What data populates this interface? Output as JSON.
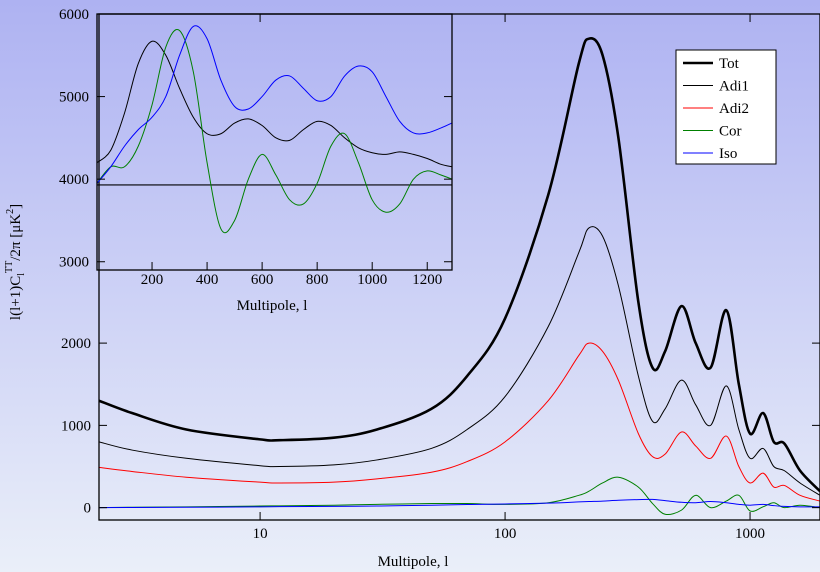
{
  "chart_data": [
    {
      "type": "line",
      "xscale": "log",
      "x_label": "Multipole, l",
      "ylabel_parts": [
        "l(l+1)C",
        "l",
        "TT",
        "/2π [μK",
        "2",
        "]"
      ],
      "xlim": [
        2.2,
        1930
      ],
      "ylim": [
        -150,
        6000
      ],
      "xticks": [
        10,
        100,
        1000
      ],
      "yticks": [
        0,
        1000,
        2000
      ],
      "legend": "upper right",
      "x": [
        2.2,
        3,
        5,
        10,
        12,
        20,
        30,
        50,
        70,
        100,
        150,
        200,
        220,
        250,
        290,
        350,
        400,
        450,
        525,
        600,
        690,
        800,
        900,
        1000,
        1130,
        1250,
        1380,
        1600,
        1930
      ],
      "series": [
        {
          "name": "Tot",
          "color": "#000000",
          "linewidth": 2.6,
          "values": [
            1300,
            1150,
            950,
            830,
            820,
            850,
            950,
            1200,
            1600,
            2300,
            3800,
            5400,
            5700,
            5500,
            4500,
            2500,
            1700,
            1900,
            2450,
            2000,
            1700,
            2400,
            1500,
            900,
            1150,
            800,
            780,
            450,
            200
          ]
        },
        {
          "name": "Adi1",
          "color": "#000000",
          "linewidth": 1,
          "values": [
            800,
            700,
            600,
            510,
            500,
            520,
            580,
            720,
            950,
            1350,
            2200,
            3100,
            3400,
            3300,
            2700,
            1600,
            1050,
            1200,
            1550,
            1250,
            1000,
            1480,
            950,
            600,
            720,
            500,
            450,
            300,
            150
          ]
        },
        {
          "name": "Adi2",
          "color": "#ff0000",
          "linewidth": 1,
          "values": [
            490,
            440,
            370,
            310,
            300,
            310,
            350,
            430,
            560,
            800,
            1300,
            1850,
            2000,
            1900,
            1550,
            900,
            620,
            650,
            920,
            750,
            600,
            870,
            500,
            300,
            420,
            250,
            270,
            150,
            80
          ]
        },
        {
          "name": "Cor",
          "color": "#008000",
          "linewidth": 1,
          "values": [
            0,
            5,
            10,
            20,
            22,
            30,
            40,
            50,
            50,
            40,
            60,
            150,
            200,
            300,
            370,
            250,
            50,
            -80,
            -30,
            150,
            0,
            80,
            150,
            -40,
            10,
            60,
            0,
            30,
            0
          ]
        },
        {
          "name": "Iso",
          "color": "#0000ff",
          "linewidth": 1,
          "values": [
            0,
            2,
            5,
            10,
            12,
            15,
            20,
            30,
            38,
            45,
            55,
            70,
            75,
            80,
            90,
            98,
            100,
            85,
            65,
            60,
            75,
            60,
            40,
            30,
            40,
            25,
            15,
            10,
            10
          ]
        }
      ]
    },
    {
      "type": "line",
      "x_label": "Multipole, l",
      "xlim": [
        0,
        1290
      ],
      "ylim": [
        2900,
        6000
      ],
      "xticks": [
        200,
        400,
        600,
        800,
        1000,
        1200
      ],
      "yticks": [
        3000,
        4000,
        5000,
        6000
      ],
      "reference_line": 3930,
      "x": [
        0,
        50,
        100,
        150,
        200,
        250,
        300,
        350,
        400,
        450,
        500,
        550,
        600,
        650,
        700,
        750,
        800,
        850,
        900,
        950,
        1000,
        1050,
        1100,
        1150,
        1200,
        1250,
        1290
      ],
      "series": [
        {
          "color": "#000000",
          "linewidth": 1,
          "values": [
            4200,
            4350,
            4800,
            5400,
            5670,
            5500,
            5100,
            4750,
            4550,
            4550,
            4680,
            4730,
            4650,
            4500,
            4470,
            4600,
            4700,
            4650,
            4500,
            4380,
            4320,
            4300,
            4330,
            4300,
            4250,
            4180,
            4150
          ]
        },
        {
          "color": "#008000",
          "linewidth": 1,
          "values": [
            3950,
            4150,
            4150,
            4400,
            4900,
            5600,
            5800,
            5300,
            4200,
            3400,
            3500,
            4000,
            4300,
            4050,
            3750,
            3700,
            3950,
            4400,
            4550,
            4200,
            3750,
            3600,
            3700,
            4000,
            4100,
            4050,
            4000
          ]
        },
        {
          "color": "#0000ff",
          "linewidth": 1,
          "values": [
            3950,
            4150,
            4400,
            4600,
            4750,
            5000,
            5500,
            5850,
            5700,
            5200,
            4880,
            4850,
            5000,
            5200,
            5250,
            5100,
            4950,
            5000,
            5250,
            5370,
            5300,
            5000,
            4700,
            4560,
            4560,
            4620,
            4680
          ]
        }
      ]
    }
  ]
}
